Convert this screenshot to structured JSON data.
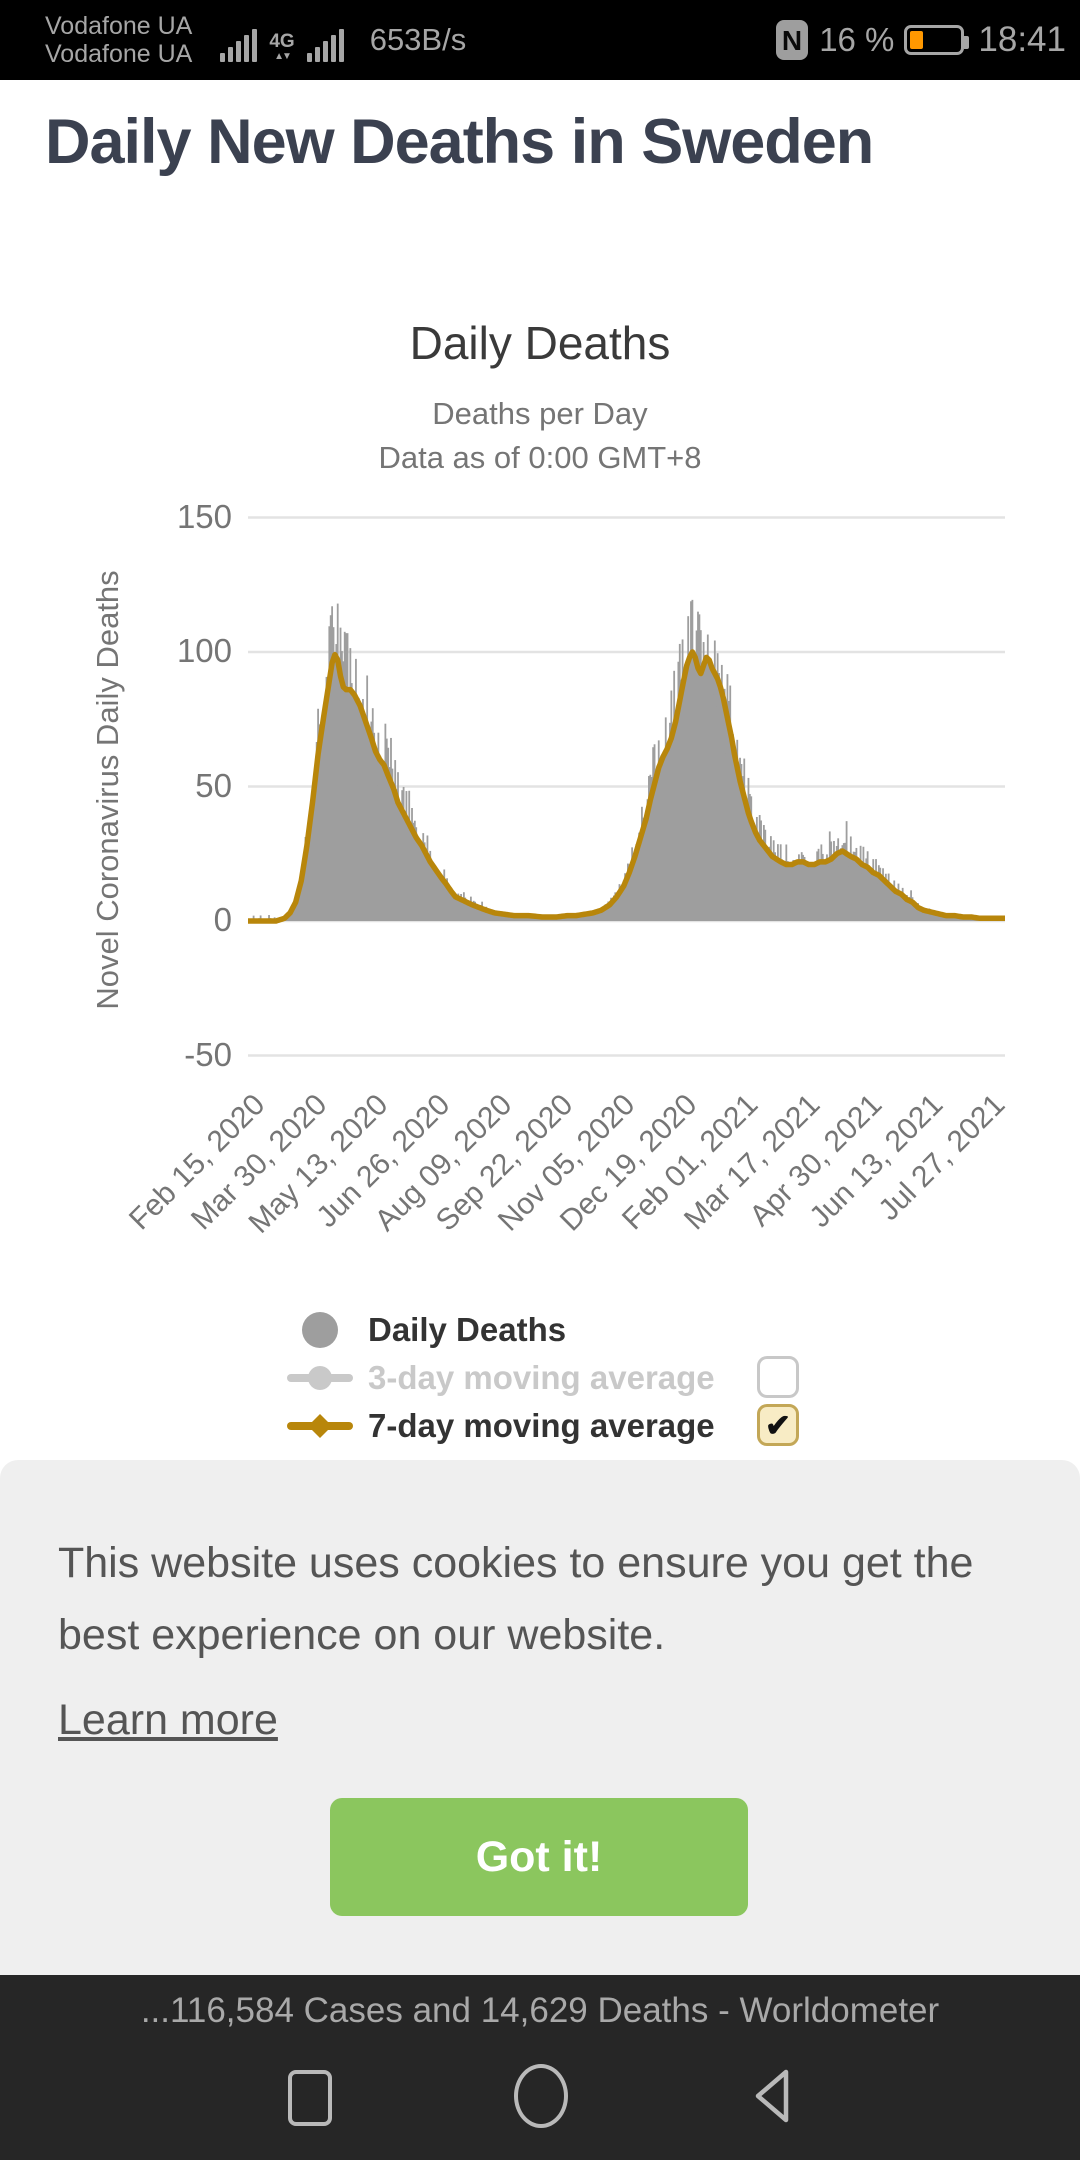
{
  "status_bar": {
    "carrier_line1": "Vodafone UA",
    "carrier_line2": "Vodafone UA",
    "network_type": "4G",
    "network_arrows": "▲▼",
    "network_speed": "653B/s",
    "nfc_glyph": "N",
    "battery_percent": "16 %",
    "battery_color": "#ff9800",
    "time": "18:41"
  },
  "page": {
    "title": "Daily New Deaths in Sweden"
  },
  "chart": {
    "title": "Daily Deaths",
    "subtitle_line1": "Deaths per Day",
    "subtitle_line2": "Data as of 0:00 GMT+8",
    "y_axis_label": "Novel Coronavirus Daily Deaths"
  },
  "chart_data": {
    "type": "bar",
    "title": "Daily Deaths",
    "subtitle": [
      "Deaths per Day",
      "Data as of 0:00 GMT+8"
    ],
    "ylabel": "Novel Coronavirus Daily Deaths",
    "ylim": [
      -50,
      150
    ],
    "yticks": [
      150,
      100,
      50,
      0,
      -50
    ],
    "grid": true,
    "legend_position": "bottom",
    "x_start": "Feb 15, 2020",
    "x_end": "Aug 08, 2021",
    "total_days": 540,
    "xtick_interval_days": 44,
    "xtick_labels": [
      "Feb 15, 2020",
      "Mar 30, 2020",
      "May 13, 2020",
      "Jun 26, 2020",
      "Aug 09, 2020",
      "Sep 22, 2020",
      "Nov 05, 2020",
      "Dec 19, 2020",
      "Feb 01, 2021",
      "Mar 17, 2021",
      "Apr 30, 2021",
      "Jun 13, 2021",
      "Jul 27, 2021"
    ],
    "series": [
      {
        "name": "Daily Deaths",
        "type": "bar",
        "color": "#9e9e9e",
        "visible": true,
        "description": "noisy daily bars scattered around the 7-day average; spikes reach ~115 in Apr 2020 and ~120 in late Dec 2020",
        "noise_band": [
          0.78,
          1.33
        ],
        "spike_chance": 0.07,
        "spike_boost": 0.28,
        "max_over_avg": 21,
        "seed": 42
      },
      {
        "name": "3-day moving average",
        "type": "line",
        "color": "#c9c9c9",
        "visible": false
      },
      {
        "name": "7-day moving average",
        "type": "line",
        "color": "#b8860b",
        "visible": true,
        "points_day_value": [
          [
            0,
            0
          ],
          [
            20,
            0
          ],
          [
            26,
            1
          ],
          [
            30,
            3
          ],
          [
            34,
            7
          ],
          [
            38,
            15
          ],
          [
            42,
            28
          ],
          [
            46,
            44
          ],
          [
            50,
            62
          ],
          [
            54,
            76
          ],
          [
            57,
            86
          ],
          [
            60,
            96
          ],
          [
            62,
            99
          ],
          [
            64,
            97
          ],
          [
            66,
            91
          ],
          [
            68,
            87
          ],
          [
            70,
            86
          ],
          [
            73,
            86
          ],
          [
            76,
            84
          ],
          [
            80,
            80
          ],
          [
            84,
            74
          ],
          [
            88,
            68
          ],
          [
            91,
            63
          ],
          [
            94,
            60
          ],
          [
            97,
            58
          ],
          [
            100,
            54
          ],
          [
            104,
            49
          ],
          [
            107,
            44
          ],
          [
            110,
            41
          ],
          [
            113,
            38
          ],
          [
            117,
            34
          ],
          [
            120,
            31
          ],
          [
            124,
            28
          ],
          [
            127,
            25
          ],
          [
            130,
            22
          ],
          [
            134,
            19
          ],
          [
            138,
            16
          ],
          [
            141,
            14
          ],
          [
            145,
            11
          ],
          [
            148,
            9
          ],
          [
            152,
            8
          ],
          [
            156,
            7
          ],
          [
            160,
            6
          ],
          [
            165,
            5
          ],
          [
            170,
            4
          ],
          [
            176,
            3
          ],
          [
            183,
            2.5
          ],
          [
            190,
            2
          ],
          [
            200,
            2
          ],
          [
            210,
            1.5
          ],
          [
            220,
            1.5
          ],
          [
            228,
            2
          ],
          [
            234,
            2
          ],
          [
            240,
            2.5
          ],
          [
            246,
            3
          ],
          [
            252,
            4
          ],
          [
            258,
            6
          ],
          [
            263,
            9
          ],
          [
            268,
            13
          ],
          [
            272,
            18
          ],
          [
            276,
            24
          ],
          [
            280,
            31
          ],
          [
            284,
            38
          ],
          [
            287,
            45
          ],
          [
            290,
            51
          ],
          [
            293,
            57
          ],
          [
            296,
            61
          ],
          [
            299,
            64
          ],
          [
            302,
            68
          ],
          [
            305,
            74
          ],
          [
            308,
            82
          ],
          [
            311,
            90
          ],
          [
            313,
            95
          ],
          [
            315,
            98
          ],
          [
            317,
            100
          ],
          [
            319,
            98
          ],
          [
            321,
            94
          ],
          [
            323,
            92
          ],
          [
            325,
            95
          ],
          [
            327,
            98
          ],
          [
            329,
            97
          ],
          [
            331,
            94
          ],
          [
            333,
            92
          ],
          [
            335,
            90
          ],
          [
            337,
            87
          ],
          [
            339,
            83
          ],
          [
            341,
            78
          ],
          [
            343,
            73
          ],
          [
            345,
            68
          ],
          [
            347,
            62
          ],
          [
            349,
            57
          ],
          [
            351,
            52
          ],
          [
            353,
            48
          ],
          [
            355,
            44
          ],
          [
            357,
            40
          ],
          [
            359,
            37
          ],
          [
            362,
            33
          ],
          [
            365,
            30
          ],
          [
            368,
            28
          ],
          [
            371,
            26
          ],
          [
            374,
            24
          ],
          [
            377,
            23
          ],
          [
            380,
            22
          ],
          [
            384,
            21
          ],
          [
            388,
            21
          ],
          [
            392,
            22
          ],
          [
            396,
            22
          ],
          [
            400,
            21
          ],
          [
            404,
            21
          ],
          [
            408,
            22
          ],
          [
            412,
            22
          ],
          [
            416,
            23
          ],
          [
            420,
            25
          ],
          [
            424,
            26
          ],
          [
            427,
            25
          ],
          [
            430,
            24
          ],
          [
            434,
            23
          ],
          [
            438,
            21
          ],
          [
            442,
            20
          ],
          [
            446,
            18
          ],
          [
            450,
            17
          ],
          [
            454,
            15
          ],
          [
            458,
            13
          ],
          [
            462,
            11
          ],
          [
            466,
            10
          ],
          [
            470,
            8
          ],
          [
            474,
            7
          ],
          [
            478,
            5
          ],
          [
            482,
            4
          ],
          [
            486,
            3.5
          ],
          [
            490,
            3
          ],
          [
            494,
            2.5
          ],
          [
            498,
            2
          ],
          [
            504,
            2
          ],
          [
            510,
            1.5
          ],
          [
            516,
            1.5
          ],
          [
            522,
            1
          ],
          [
            528,
            1
          ],
          [
            534,
            1
          ],
          [
            540,
            1
          ]
        ]
      }
    ]
  },
  "legend": {
    "items": [
      {
        "label": "Daily Deaths",
        "marker": "gray-circle",
        "color": "#9e9e9e",
        "checkbox": null
      },
      {
        "label": "3-day moving average",
        "marker": "line-circle",
        "color": "#c9c9c9",
        "checkbox": "unchecked"
      },
      {
        "label": "7-day moving average",
        "marker": "line-diamond",
        "color": "#b8860b",
        "checkbox": "checked"
      }
    ],
    "checkmark_glyph": "✔"
  },
  "cookie_banner": {
    "message": "This website uses cookies to ensure you get the best experience on our website.",
    "learn_more_label": "Learn more",
    "accept_label": "Got it!",
    "accept_color": "#8bc65e"
  },
  "footer": {
    "title_snippet": "...116,584 Cases and 14,629 Deaths - Worldometer"
  },
  "nav_bar": {
    "icons": [
      "recents-square",
      "home-circle",
      "back-triangle"
    ]
  }
}
